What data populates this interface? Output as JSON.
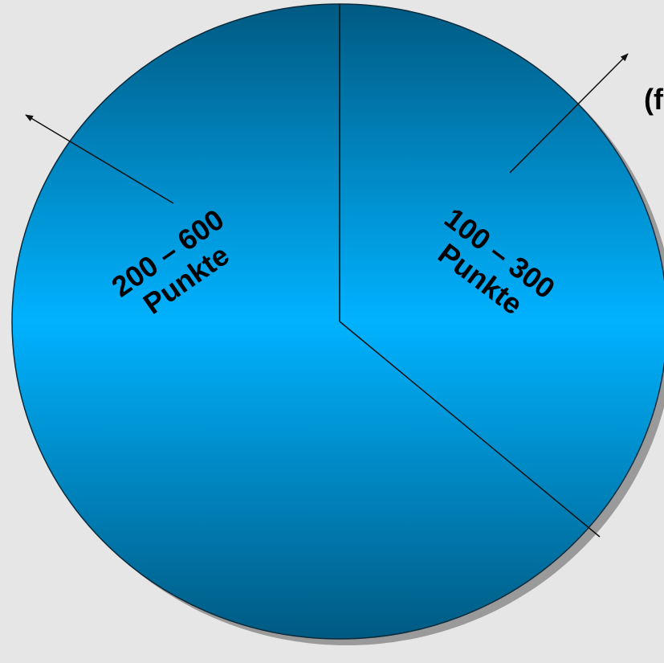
{
  "diagram": {
    "segments": [
      {
        "id": "left",
        "label_line1": "200 – 600",
        "label_line2": "Punkte"
      },
      {
        "id": "right",
        "label_line1": "100 – 300",
        "label_line2": "Punkte"
      }
    ],
    "edge_text": "(f",
    "colors": {
      "background": "#e6e6e6",
      "circle_light": "#00b2ff",
      "circle_dark": "#005a82",
      "shadow": "#9a9a9a",
      "lines": "#111111",
      "text": "#000000"
    }
  }
}
